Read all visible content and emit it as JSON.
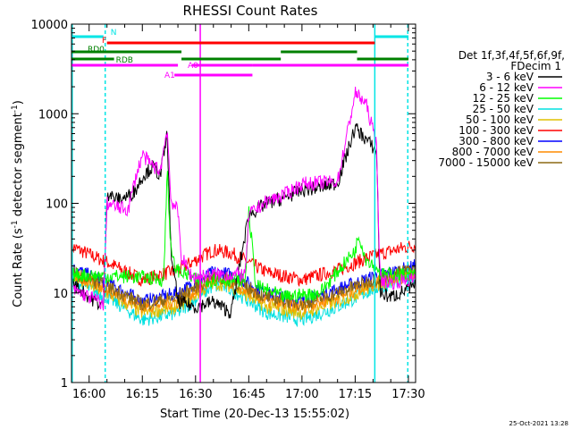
{
  "chart_data": {
    "type": "line",
    "title": "RHESSI Count Rates",
    "xlabel": "Start Time (20-Dec-13 15:55:02)",
    "ylabel_main": "Count Rate (s",
    "ylabel_sup": "-1",
    "ylabel_end": " detector segment",
    "ylabel_sup2": "-1",
    "ylabel_close": ")",
    "yscale": "log",
    "ylim": [
      1,
      10000
    ],
    "xlim_minutes": [
      0,
      97
    ],
    "x_ticks": [
      {
        "label": "16:00",
        "minute": 4.97
      },
      {
        "label": "16:15",
        "minute": 19.97
      },
      {
        "label": "16:30",
        "minute": 34.97
      },
      {
        "label": "16:45",
        "minute": 49.97
      },
      {
        "label": "17:00",
        "minute": 64.97
      },
      {
        "label": "17:15",
        "minute": 79.97
      },
      {
        "label": "17:30",
        "minute": 94.97
      }
    ],
    "y_ticks": [
      {
        "label": "1",
        "value": 1
      },
      {
        "label": "10",
        "value": 10
      },
      {
        "label": "100",
        "value": 100
      },
      {
        "label": "1000",
        "value": 1000
      },
      {
        "label": "10000",
        "value": 10000
      }
    ],
    "legend_header": [
      "Det 1f,3f,4f,5f,6f,9f,",
      "FDecim 1"
    ],
    "series": [
      {
        "name": "3 - 6 keV",
        "color": "#000000",
        "points": [
          [
            0,
            13
          ],
          [
            5,
            9
          ],
          [
            9,
            7
          ],
          [
            10,
            130
          ],
          [
            13,
            110
          ],
          [
            16,
            120
          ],
          [
            18,
            140
          ],
          [
            20,
            200
          ],
          [
            23,
            260
          ],
          [
            25,
            200
          ],
          [
            27,
            600
          ],
          [
            28,
            30
          ],
          [
            30,
            8
          ],
          [
            35,
            7
          ],
          [
            40,
            8
          ],
          [
            45,
            6
          ],
          [
            50,
            75
          ],
          [
            55,
            100
          ],
          [
            60,
            115
          ],
          [
            65,
            140
          ],
          [
            70,
            150
          ],
          [
            75,
            170
          ],
          [
            80,
            700
          ],
          [
            83,
            520
          ],
          [
            86,
            380
          ],
          [
            87,
            10
          ],
          [
            90,
            9
          ],
          [
            95,
            11
          ],
          [
            97,
            12
          ]
        ]
      },
      {
        "name": "6 - 12 keV",
        "color": "#ff00ff",
        "points": [
          [
            0,
            11
          ],
          [
            8,
            8
          ],
          [
            9,
            7
          ],
          [
            10,
            100
          ],
          [
            13,
            90
          ],
          [
            16,
            85
          ],
          [
            18,
            190
          ],
          [
            20,
            350
          ],
          [
            22,
            280
          ],
          [
            25,
            230
          ],
          [
            27,
            700
          ],
          [
            28,
            110
          ],
          [
            29,
            95
          ],
          [
            30,
            80
          ],
          [
            31,
            25
          ],
          [
            34,
            15
          ],
          [
            40,
            16
          ],
          [
            49,
            16
          ],
          [
            50,
            75
          ],
          [
            55,
            105
          ],
          [
            60,
            125
          ],
          [
            65,
            165
          ],
          [
            70,
            170
          ],
          [
            75,
            175
          ],
          [
            80,
            1700
          ],
          [
            83,
            1300
          ],
          [
            86,
            460
          ],
          [
            87,
            14
          ],
          [
            90,
            13
          ],
          [
            95,
            14
          ],
          [
            97,
            14
          ]
        ]
      },
      {
        "name": "12 - 25 keV",
        "color": "#00ff00",
        "points": [
          [
            0,
            16
          ],
          [
            20,
            15
          ],
          [
            26,
            14
          ],
          [
            27,
            250
          ],
          [
            28,
            30
          ],
          [
            29,
            20
          ],
          [
            30,
            18
          ],
          [
            35,
            14
          ],
          [
            49,
            14
          ],
          [
            50,
            80
          ],
          [
            52,
            12
          ],
          [
            60,
            9
          ],
          [
            70,
            10
          ],
          [
            80,
            30
          ],
          [
            81,
            45
          ],
          [
            83,
            24
          ],
          [
            86,
            20
          ],
          [
            87,
            16
          ],
          [
            95,
            16
          ],
          [
            97,
            16
          ]
        ]
      },
      {
        "name": "25 - 50 keV",
        "color": "#00e0e0",
        "points": [
          [
            0,
            14
          ],
          [
            10,
            9
          ],
          [
            20,
            5
          ],
          [
            30,
            6
          ],
          [
            40,
            12
          ],
          [
            45,
            11
          ],
          [
            55,
            6
          ],
          [
            65,
            5
          ],
          [
            75,
            7
          ],
          [
            85,
            11
          ],
          [
            95,
            15
          ],
          [
            97,
            15
          ]
        ]
      },
      {
        "name": "50 - 100 keV",
        "color": "#e0c000",
        "points": [
          [
            0,
            15
          ],
          [
            10,
            10
          ],
          [
            20,
            6
          ],
          [
            30,
            7
          ],
          [
            40,
            13
          ],
          [
            45,
            12
          ],
          [
            55,
            7
          ],
          [
            65,
            6
          ],
          [
            75,
            8
          ],
          [
            85,
            12
          ],
          [
            95,
            16
          ],
          [
            97,
            16
          ]
        ]
      },
      {
        "name": "100 - 300 keV",
        "color": "#ff0000",
        "points": [
          [
            0,
            33
          ],
          [
            10,
            22
          ],
          [
            20,
            14
          ],
          [
            30,
            18
          ],
          [
            40,
            30
          ],
          [
            45,
            28
          ],
          [
            55,
            17
          ],
          [
            65,
            14
          ],
          [
            75,
            18
          ],
          [
            85,
            26
          ],
          [
            95,
            33
          ],
          [
            97,
            34
          ]
        ]
      },
      {
        "name": "300 - 800 keV",
        "color": "#0000ff",
        "points": [
          [
            0,
            19
          ],
          [
            10,
            13
          ],
          [
            20,
            8
          ],
          [
            30,
            10
          ],
          [
            40,
            17
          ],
          [
            45,
            16
          ],
          [
            55,
            10
          ],
          [
            65,
            8
          ],
          [
            75,
            11
          ],
          [
            85,
            15
          ],
          [
            95,
            19
          ],
          [
            97,
            20
          ]
        ]
      },
      {
        "name": "800 - 7000 keV",
        "color": "#ff8c00",
        "points": [
          [
            0,
            16
          ],
          [
            10,
            11
          ],
          [
            20,
            7
          ],
          [
            30,
            8
          ],
          [
            40,
            14
          ],
          [
            45,
            13
          ],
          [
            55,
            8
          ],
          [
            65,
            7
          ],
          [
            75,
            9
          ],
          [
            85,
            13
          ],
          [
            95,
            17
          ],
          [
            97,
            17
          ]
        ]
      },
      {
        "name": "7000 - 15000 keV",
        "color": "#8b6914",
        "points": [
          [
            0,
            17
          ],
          [
            10,
            12
          ],
          [
            20,
            7.5
          ],
          [
            30,
            9
          ],
          [
            40,
            15
          ],
          [
            45,
            14
          ],
          [
            55,
            9
          ],
          [
            65,
            7.5
          ],
          [
            75,
            10
          ],
          [
            85,
            14
          ],
          [
            95,
            18
          ],
          [
            97,
            18
          ]
        ]
      }
    ],
    "flag_bars": [
      {
        "label": "N",
        "color": "#00e5e5",
        "segments": [
          [
            0,
            9
          ],
          [
            85.5,
            95
          ]
        ]
      },
      {
        "label": "F",
        "color": "#ff0000",
        "segments": [
          [
            10,
            85.5
          ]
        ]
      },
      {
        "label": "RD0",
        "color": "#008000",
        "segments": [
          [
            0,
            31
          ],
          [
            59,
            80.5
          ]
        ]
      },
      {
        "label": "RDB",
        "color": "#008000",
        "segments": [
          [
            0,
            12
          ],
          [
            31,
            59
          ],
          [
            80.5,
            95
          ]
        ]
      },
      {
        "label": "A0",
        "color": "#ff00ff",
        "segments": [
          [
            0,
            30
          ],
          [
            34,
            51
          ],
          [
            51,
            95
          ]
        ]
      },
      {
        "label": "A1",
        "color": "#ff00ff",
        "segments": [
          [
            29,
            51
          ]
        ]
      }
    ],
    "vlines": [
      {
        "minute": 0.2,
        "color": "#00e5e5",
        "style": "solid"
      },
      {
        "minute": 9.5,
        "color": "#00e5e5",
        "style": "dashed"
      },
      {
        "minute": 85.5,
        "color": "#00e5e5",
        "style": "solid"
      },
      {
        "minute": 94.8,
        "color": "#00e5e5",
        "style": "dashed"
      },
      {
        "minute": 36.3,
        "color": "#ff00ff",
        "style": "solid"
      }
    ],
    "timestamp": "25-Oct-2021 13:28"
  }
}
